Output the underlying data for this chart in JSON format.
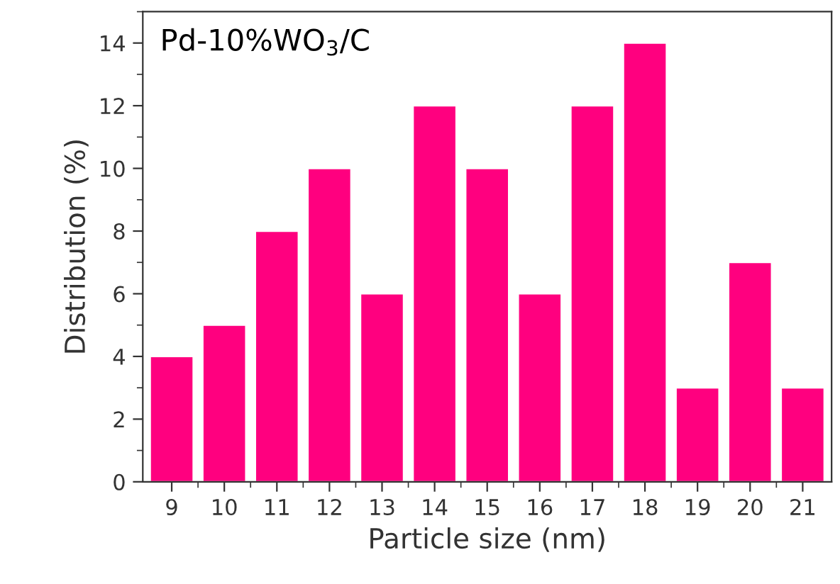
{
  "chart_data": {
    "type": "bar",
    "title": "Pd-10%WO$_{3}$/C",
    "xlabel": "Particle size (nm)",
    "ylabel": "Distribution (%)",
    "categories": [
      "9",
      "10",
      "11",
      "12",
      "13",
      "14",
      "15",
      "16",
      "17",
      "18",
      "19",
      "20",
      "21"
    ],
    "values": [
      4,
      5,
      8,
      10,
      6,
      12,
      10,
      6,
      12,
      14,
      3,
      7,
      3
    ],
    "color": "#ff007f",
    "ylim": [
      0,
      15
    ],
    "yticks": [
      0,
      2,
      4,
      6,
      8,
      10,
      12,
      14
    ],
    "grid": false
  }
}
